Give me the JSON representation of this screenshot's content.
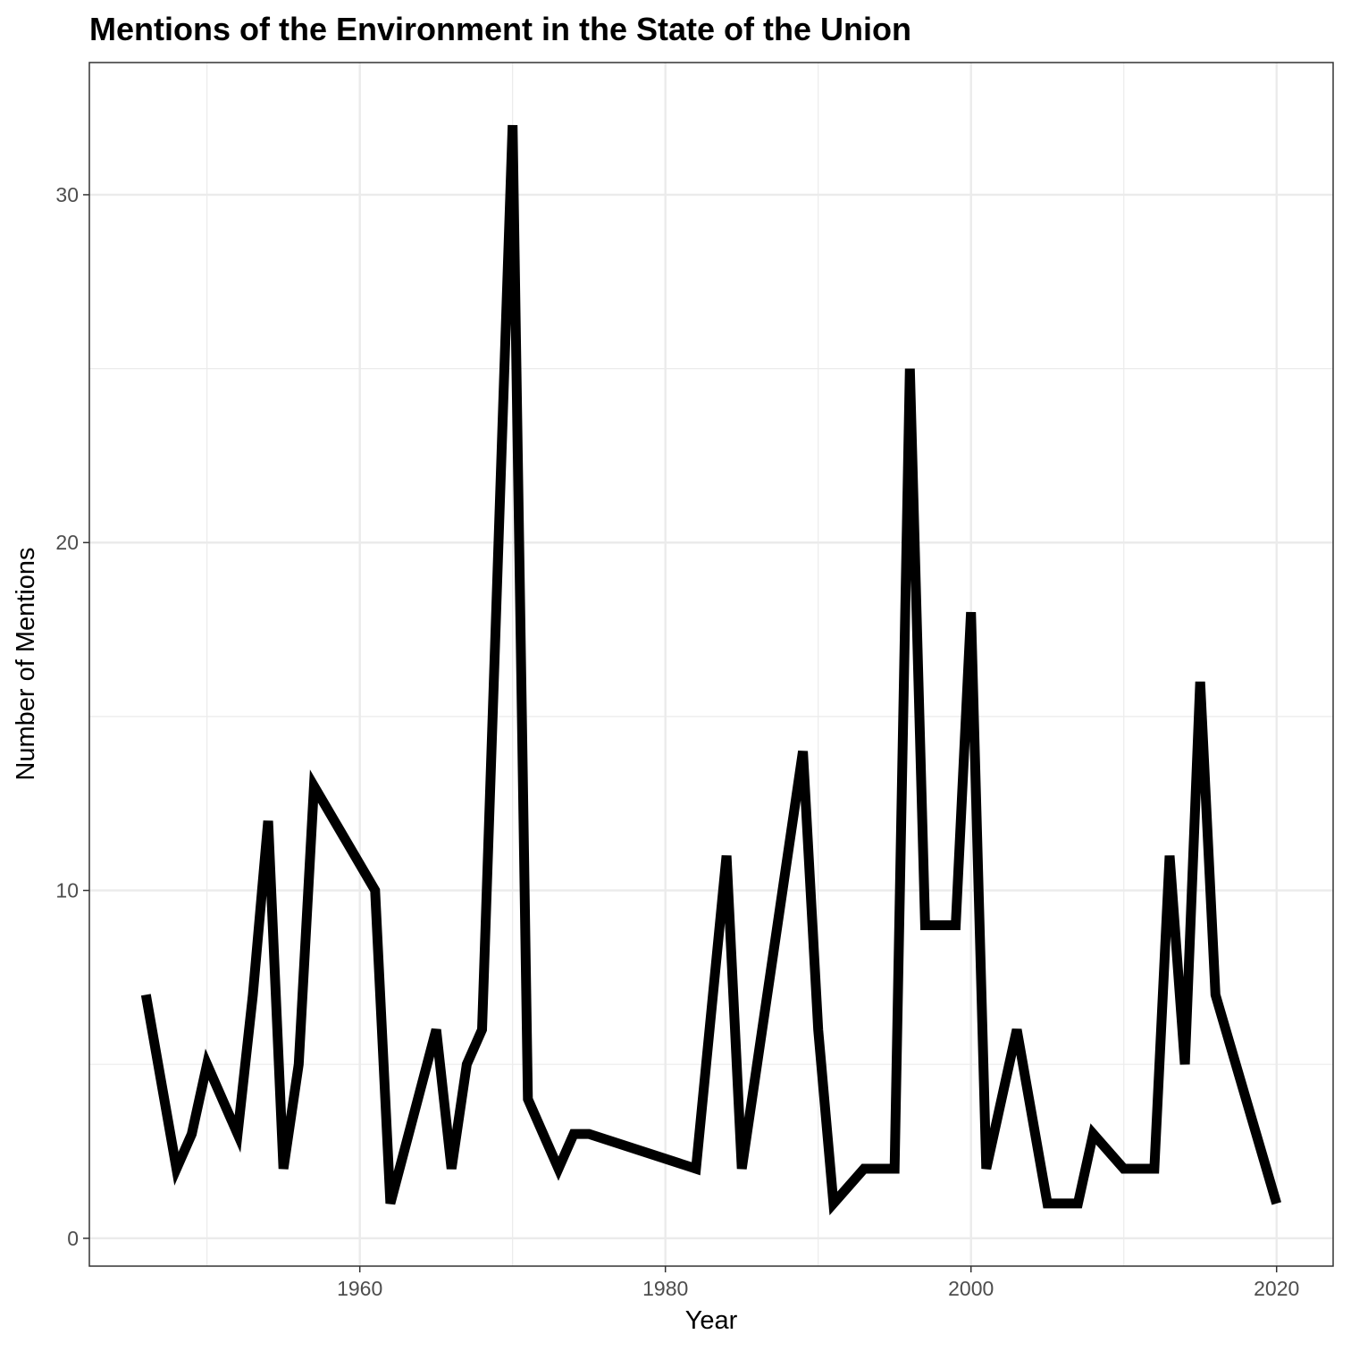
{
  "chart_data": {
    "type": "line",
    "title": "Mentions of the Environment in the State of the Union",
    "xlabel": "Year",
    "ylabel": "Number of Mentions",
    "xlim": [
      1942.3,
      2023.7
    ],
    "ylim": [
      -0.8,
      33.8
    ],
    "x_ticks": [
      1960,
      1980,
      2000,
      2020
    ],
    "x_tick_labels": [
      "1960",
      "1980",
      "2000",
      "2020"
    ],
    "x_minor_ticks": [
      1950,
      1970,
      1990,
      2010
    ],
    "y_ticks": [
      0,
      10,
      20,
      30
    ],
    "y_tick_labels": [
      "0",
      "10",
      "20",
      "30"
    ],
    "y_minor_ticks": [
      5,
      15,
      25
    ],
    "grid": true,
    "legend": "none",
    "colors": {
      "line": "#000000",
      "grid": "#ebebeb",
      "panel_border": "#333333",
      "tick_text": "#4d4d4d"
    },
    "series": [
      {
        "x": [
          1946,
          1948,
          1949,
          1950,
          1952,
          1953,
          1954,
          1955,
          1956,
          1957,
          1961,
          1962,
          1965,
          1966,
          1967,
          1968,
          1970,
          1971,
          1973,
          1974,
          1975,
          1982,
          1984,
          1985,
          1989,
          1990,
          1991,
          1993,
          1994,
          1995,
          1996,
          1997,
          1998,
          1999,
          2000,
          2001,
          2003,
          2005,
          2006,
          2007,
          2008,
          2010,
          2011,
          2012,
          2013,
          2014,
          2015,
          2016,
          2020
        ],
        "values": [
          7,
          2,
          3,
          5,
          3,
          7,
          12,
          2,
          5,
          13,
          10,
          1,
          6,
          2,
          5,
          6,
          32,
          4,
          2,
          3,
          3,
          2,
          11,
          2,
          14,
          6,
          1,
          2,
          2,
          2,
          25,
          9,
          9,
          9,
          18,
          2,
          6,
          1,
          1,
          1,
          3,
          2,
          2,
          2,
          11,
          5,
          16,
          7,
          1
        ]
      }
    ]
  }
}
